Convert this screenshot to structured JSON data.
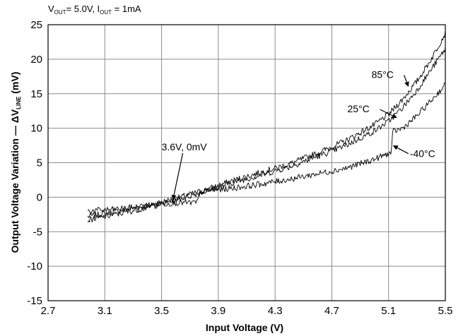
{
  "chart_data": {
    "type": "line",
    "condition": {
      "v_main": "V",
      "v_sub": "OUT",
      "v_val": "= 5.0V, ",
      "i_main": "I",
      "i_sub": "OUT",
      "i_val": " = 1mA"
    },
    "xlabel": "Input Voltage  (V)",
    "ylabel": {
      "main": "Output Voltage Variation — ΔV",
      "sub": "LINE",
      "unit": " (mV)"
    },
    "xlim": [
      2.7,
      5.5
    ],
    "ylim": [
      -15,
      25
    ],
    "x_ticks": [
      "2.7",
      "3.1",
      "3.5",
      "3.9",
      "4.3",
      "4.7",
      "5.1",
      "5.5"
    ],
    "y_ticks": [
      "25",
      "20",
      "15",
      "10",
      "5",
      "0",
      "-5",
      "-10",
      "-15"
    ],
    "grid": true,
    "series": [
      {
        "label": "85°C",
        "color": "#000000",
        "x": [
          2.98,
          3.2,
          3.4,
          3.6,
          3.8,
          4.0,
          4.2,
          4.4,
          4.6,
          4.8,
          5.0,
          5.1,
          5.2,
          5.3,
          5.4,
          5.5
        ],
        "y": [
          -2.8,
          -2.0,
          -1.2,
          -0.2,
          1.0,
          2.4,
          3.6,
          4.8,
          6.4,
          8.2,
          10.5,
          12.0,
          14.2,
          16.8,
          20.0,
          23.8
        ]
      },
      {
        "label": "25°C",
        "color": "#000000",
        "x": [
          2.98,
          3.2,
          3.4,
          3.6,
          3.8,
          4.0,
          4.2,
          4.4,
          4.6,
          4.8,
          5.0,
          5.1,
          5.2,
          5.3,
          5.4,
          5.5
        ],
        "y": [
          -3.3,
          -2.4,
          -1.5,
          -0.4,
          0.8,
          2.1,
          3.2,
          4.4,
          5.9,
          7.5,
          9.6,
          11.0,
          13.0,
          15.5,
          18.5,
          21.5
        ]
      },
      {
        "label": "-40°C",
        "color": "#000000",
        "x": [
          2.98,
          3.2,
          3.4,
          3.6,
          3.75,
          3.77,
          3.8,
          4.0,
          4.2,
          4.4,
          4.6,
          4.8,
          5.0,
          5.12,
          5.13,
          5.2,
          5.3,
          5.4,
          5.5
        ],
        "y": [
          -2.0,
          -1.7,
          -1.2,
          -0.8,
          -0.8,
          0.6,
          0.9,
          1.3,
          1.9,
          2.6,
          3.4,
          4.2,
          5.5,
          6.5,
          9.5,
          10.0,
          11.8,
          14.0,
          16.3
        ]
      }
    ],
    "annotations": [
      {
        "text": "85°C",
        "text_x": 4.98,
        "text_y": 17.3,
        "point_x": 5.24,
        "point_y": 16.0
      },
      {
        "text": "25°C",
        "text_x": 4.81,
        "text_y": 12.3,
        "point_x": 5.16,
        "point_y": 11.5
      },
      {
        "text": "-40°C",
        "text_x": 5.25,
        "text_y": 5.8,
        "point_x": 5.13,
        "point_y": 7.5
      },
      {
        "text": "3.6V, 0mV",
        "text_x": 3.5,
        "text_y": 6.8,
        "point_x": 3.58,
        "point_y": -0.4
      }
    ]
  }
}
